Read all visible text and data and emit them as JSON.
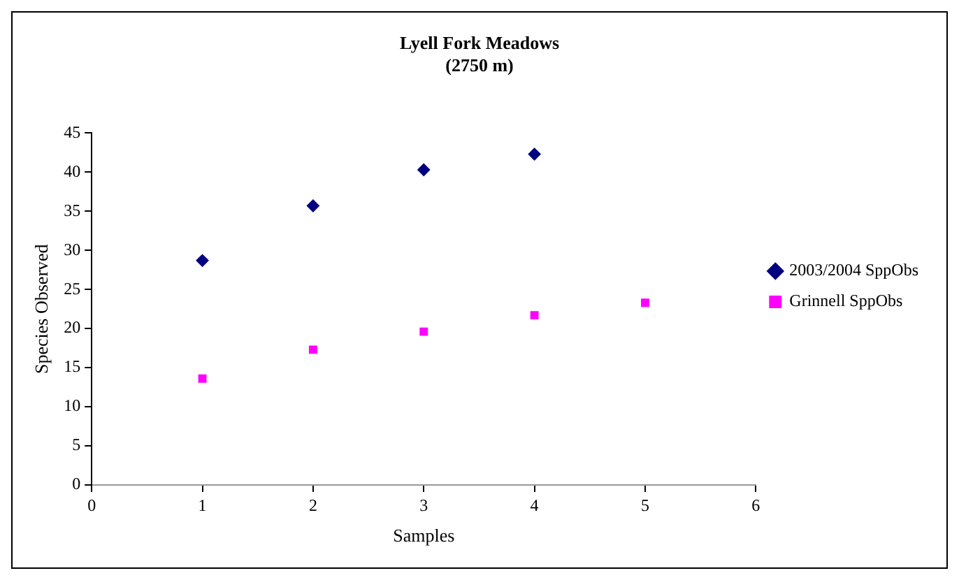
{
  "chart_data": {
    "type": "scatter",
    "title": "Lyell Fork Meadows\n(2750 m)",
    "xlabel": "Samples",
    "ylabel": "Species Observed",
    "series": [
      {
        "name": "2003/2004 SppObs",
        "color": "#000080",
        "marker": "diamond",
        "x": [
          1,
          2,
          3,
          4
        ],
        "values": [
          28.7,
          35.7,
          40.3,
          42.3
        ]
      },
      {
        "name": "Grinnell SppObs",
        "color": "#ff00ff",
        "marker": "square",
        "x": [
          1,
          2,
          3,
          4,
          5
        ],
        "values": [
          13.6,
          17.3,
          19.6,
          21.7,
          23.3
        ]
      }
    ],
    "xlim": [
      0,
      6
    ],
    "xticks": [
      0,
      1,
      2,
      3,
      4,
      5,
      6
    ],
    "ylim": [
      0,
      45
    ],
    "yticks": [
      0,
      5,
      10,
      15,
      20,
      25,
      30,
      35,
      40,
      45
    ],
    "grid": false,
    "legend": "right"
  }
}
